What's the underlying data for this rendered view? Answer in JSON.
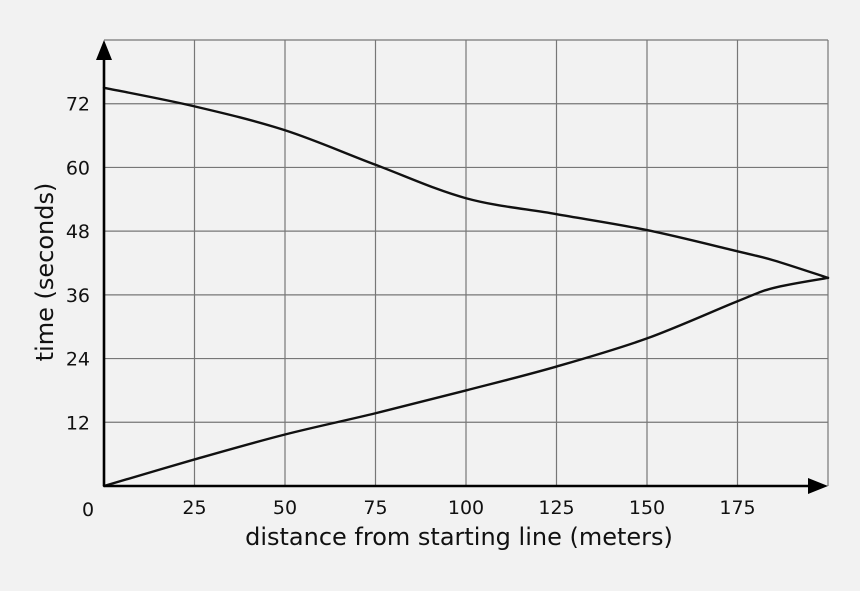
{
  "chart_data": {
    "type": "line",
    "title": "",
    "xlabel": "distance from starting line (meters)",
    "ylabel": "time (seconds)",
    "xlim": [
      0,
      200
    ],
    "ylim": [
      0,
      84
    ],
    "x_ticks": [
      25,
      50,
      75,
      100,
      125,
      150,
      175
    ],
    "y_ticks": [
      12,
      24,
      36,
      48,
      60,
      72
    ],
    "origin_label": "0",
    "grid": true,
    "series": [
      {
        "x": [
          0,
          25,
          50,
          75,
          100,
          125,
          150,
          175,
          185,
          200
        ],
        "y": [
          75,
          71.5,
          67,
          60.5,
          54.2,
          51.2,
          48.2,
          44.2,
          42.5,
          39.2
        ]
      },
      {
        "x": [
          0,
          25,
          50,
          75,
          100,
          125,
          150,
          175,
          185,
          200
        ],
        "y": [
          0,
          5,
          9.7,
          13.7,
          18,
          22.5,
          27.8,
          34.8,
          37.3,
          39.2
        ]
      }
    ]
  }
}
